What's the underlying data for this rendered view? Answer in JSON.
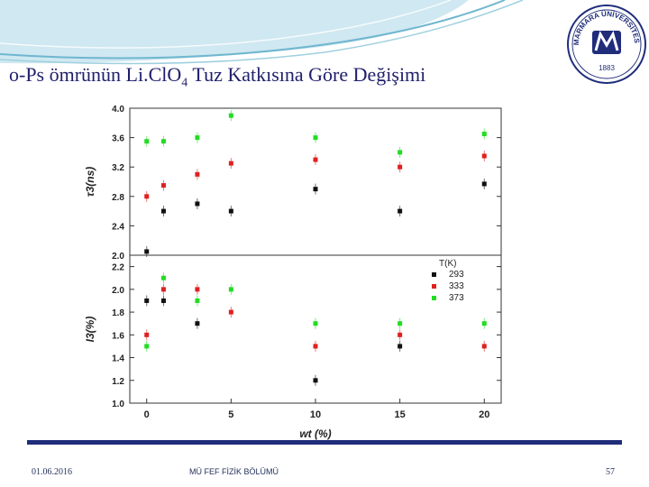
{
  "slide": {
    "title_main": "o-Ps ömrünün Li.ClO",
    "title_sub": "4",
    "title_tail": " Tuz Katkısına Göre Değişimi",
    "footer_date": "01.06.2016",
    "footer_dept": "MÜ FEF FİZİK BÖLÜMÜ",
    "page_number": "57",
    "accent_color": "#1f2d7a",
    "swoosh_color": "#6fb6cf"
  },
  "logo": {
    "top_text": "MARMARA ÜNİVERSİTESİ",
    "year": "1883",
    "ring_color": "#1f2d7a"
  },
  "chart_data": [
    {
      "type": "scatter",
      "panel": "top",
      "ylabel": "τ3(ns)",
      "ylim": [
        2.0,
        4.0
      ],
      "yticks": [
        "2.0",
        "2.4",
        "2.8",
        "3.2",
        "3.6",
        "4.0"
      ],
      "x": [
        0,
        1,
        3,
        5,
        10,
        15,
        20
      ],
      "series": [
        {
          "name": "293",
          "color": "#111111",
          "values": [
            2.05,
            2.6,
            2.7,
            2.6,
            2.9,
            2.6,
            2.97
          ]
        },
        {
          "name": "333",
          "color": "#e02020",
          "values": [
            2.8,
            2.95,
            3.1,
            3.25,
            3.3,
            3.2,
            3.35
          ]
        },
        {
          "name": "373",
          "color": "#22dd22",
          "values": [
            3.55,
            3.55,
            3.6,
            3.9,
            3.6,
            3.4,
            3.65
          ]
        }
      ]
    },
    {
      "type": "scatter",
      "panel": "bottom",
      "ylabel": "I3(%)",
      "xlabel": "wt (%)",
      "ylim": [
        1.0,
        2.3
      ],
      "yticks": [
        "1.0",
        "1.2",
        "1.4",
        "1.6",
        "1.8",
        "2.0",
        "2.2"
      ],
      "xticks": [
        "0",
        "5",
        "10",
        "15",
        "20"
      ],
      "xlim": [
        -1,
        21
      ],
      "legend_title": "T(K)",
      "legend_position": "top-right",
      "x": [
        0,
        1,
        3,
        5,
        10,
        15,
        20
      ],
      "series": [
        {
          "name": "293",
          "color": "#111111",
          "values": [
            1.9,
            1.9,
            1.7,
            null,
            1.2,
            1.5,
            null
          ]
        },
        {
          "name": "333",
          "color": "#e02020",
          "values": [
            1.6,
            2.0,
            2.0,
            1.8,
            1.5,
            1.6,
            1.5
          ]
        },
        {
          "name": "373",
          "color": "#22dd22",
          "values": [
            1.5,
            2.1,
            1.9,
            2.0,
            1.7,
            1.7,
            1.7
          ]
        }
      ]
    }
  ]
}
